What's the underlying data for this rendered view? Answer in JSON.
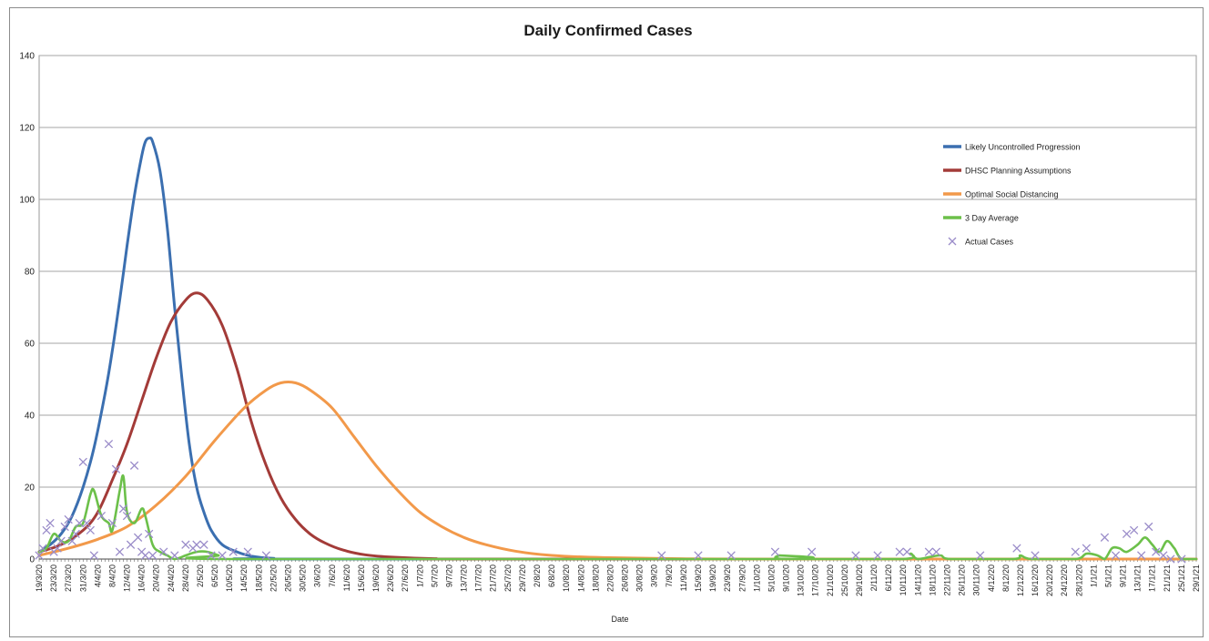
{
  "chart_data": {
    "type": "line",
    "title": "Daily Confirmed Cases",
    "xlabel": "Date",
    "ylabel": "",
    "ylim": [
      0,
      140
    ],
    "yticks": [
      0,
      20,
      40,
      60,
      80,
      100,
      120,
      140
    ],
    "grid": true,
    "legend_position": "top-right",
    "x_start_date": "2020-03-19",
    "x_end_date": "2021-01-29",
    "x_tick_labels": [
      "19/3/20",
      "23/3/20",
      "27/3/20",
      "31/3/20",
      "4/4/20",
      "8/4/20",
      "12/4/20",
      "16/4/20",
      "20/4/20",
      "24/4/20",
      "28/4/20",
      "2/5/20",
      "6/5/20",
      "10/5/20",
      "14/5/20",
      "18/5/20",
      "22/5/20",
      "26/5/20",
      "30/5/20",
      "3/6/20",
      "7/6/20",
      "11/6/20",
      "15/6/20",
      "19/6/20",
      "23/6/20",
      "27/6/20",
      "1/7/20",
      "5/7/20",
      "9/7/20",
      "13/7/20",
      "17/7/20",
      "21/7/20",
      "25/7/20",
      "29/7/20",
      "2/8/20",
      "6/8/20",
      "10/8/20",
      "14/8/20",
      "18/8/20",
      "22/8/20",
      "26/8/20",
      "30/8/20",
      "3/9/20",
      "7/9/20",
      "11/9/20",
      "15/9/20",
      "19/9/20",
      "23/9/20",
      "27/9/20",
      "1/10/20",
      "5/10/20",
      "9/10/20",
      "13/10/20",
      "17/10/20",
      "21/10/20",
      "25/10/20",
      "29/10/20",
      "2/11/20",
      "6/11/20",
      "10/11/20",
      "14/11/20",
      "18/11/20",
      "22/11/20",
      "26/11/20",
      "30/11/20",
      "4/12/20",
      "8/12/20",
      "12/12/20",
      "16/12/20",
      "20/12/20",
      "24/12/20",
      "28/12/20",
      "1/1/21",
      "5/1/21",
      "9/1/21",
      "13/1/21",
      "17/1/21",
      "21/1/21",
      "25/1/21",
      "29/1/21"
    ],
    "series": [
      {
        "name": "Likely Uncontrolled Progression",
        "color": "#3b6fb0",
        "style": "line",
        "points": [
          [
            "2020-03-19",
            2
          ],
          [
            "2020-03-22",
            4
          ],
          [
            "2020-03-25",
            7
          ],
          [
            "2020-03-28",
            12
          ],
          [
            "2020-03-31",
            20
          ],
          [
            "2020-04-03",
            31
          ],
          [
            "2020-04-06",
            46
          ],
          [
            "2020-04-08",
            58
          ],
          [
            "2020-04-10",
            72
          ],
          [
            "2020-04-12",
            87
          ],
          [
            "2020-04-14",
            101
          ],
          [
            "2020-04-16",
            112
          ],
          [
            "2020-04-17",
            116
          ],
          [
            "2020-04-18",
            117
          ],
          [
            "2020-04-19",
            116
          ],
          [
            "2020-04-21",
            108
          ],
          [
            "2020-04-23",
            92
          ],
          [
            "2020-04-25",
            70
          ],
          [
            "2020-04-27",
            50
          ],
          [
            "2020-04-29",
            32
          ],
          [
            "2020-05-01",
            20
          ],
          [
            "2020-05-03",
            13
          ],
          [
            "2020-05-05",
            8
          ],
          [
            "2020-05-08",
            4
          ],
          [
            "2020-05-12",
            2
          ],
          [
            "2020-05-16",
            0.8
          ],
          [
            "2020-05-22",
            0.2
          ],
          [
            "2020-06-01",
            0
          ],
          [
            "2021-01-29",
            0
          ]
        ]
      },
      {
        "name": "DHSC Planning Assumptions",
        "color": "#a33b38",
        "style": "line",
        "points": [
          [
            "2020-03-19",
            2
          ],
          [
            "2020-03-25",
            4
          ],
          [
            "2020-03-31",
            8
          ],
          [
            "2020-04-04",
            13
          ],
          [
            "2020-04-08",
            22
          ],
          [
            "2020-04-12",
            32
          ],
          [
            "2020-04-16",
            44
          ],
          [
            "2020-04-20",
            56
          ],
          [
            "2020-04-24",
            66
          ],
          [
            "2020-04-28",
            72
          ],
          [
            "2020-05-01",
            74
          ],
          [
            "2020-05-04",
            72
          ],
          [
            "2020-05-08",
            65
          ],
          [
            "2020-05-12",
            53
          ],
          [
            "2020-05-16",
            38
          ],
          [
            "2020-05-20",
            26
          ],
          [
            "2020-05-24",
            17
          ],
          [
            "2020-05-28",
            11
          ],
          [
            "2020-06-01",
            7
          ],
          [
            "2020-06-05",
            4.5
          ],
          [
            "2020-06-10",
            2.5
          ],
          [
            "2020-06-16",
            1.2
          ],
          [
            "2020-06-24",
            0.5
          ],
          [
            "2020-07-05",
            0.1
          ],
          [
            "2020-07-20",
            0
          ],
          [
            "2021-01-29",
            0
          ]
        ]
      },
      {
        "name": "Optimal Social Distancing",
        "color": "#f2994a",
        "style": "line",
        "points": [
          [
            "2020-03-19",
            1
          ],
          [
            "2020-03-27",
            3
          ],
          [
            "2020-04-04",
            5.5
          ],
          [
            "2020-04-12",
            9
          ],
          [
            "2020-04-20",
            15
          ],
          [
            "2020-04-28",
            23
          ],
          [
            "2020-05-06",
            33
          ],
          [
            "2020-05-14",
            42
          ],
          [
            "2020-05-20",
            47
          ],
          [
            "2020-05-24",
            49
          ],
          [
            "2020-05-28",
            49
          ],
          [
            "2020-06-01",
            47
          ],
          [
            "2020-06-07",
            42
          ],
          [
            "2020-06-13",
            34
          ],
          [
            "2020-06-19",
            26
          ],
          [
            "2020-06-25",
            19
          ],
          [
            "2020-07-01",
            13
          ],
          [
            "2020-07-07",
            9
          ],
          [
            "2020-07-13",
            6
          ],
          [
            "2020-07-19",
            4
          ],
          [
            "2020-07-27",
            2.2
          ],
          [
            "2020-08-06",
            1
          ],
          [
            "2020-08-20",
            0.4
          ],
          [
            "2020-09-10",
            0.1
          ],
          [
            "2020-10-01",
            0
          ],
          [
            "2021-01-14",
            0
          ],
          [
            "2021-01-29",
            0
          ]
        ]
      },
      {
        "name": "3 Day Average",
        "color": "#6cc04a",
        "style": "line",
        "points": [
          [
            "2020-03-19",
            2
          ],
          [
            "2020-03-21",
            3
          ],
          [
            "2020-03-23",
            7
          ],
          [
            "2020-03-25",
            5
          ],
          [
            "2020-03-27",
            5
          ],
          [
            "2020-03-29",
            9
          ],
          [
            "2020-03-31",
            10
          ],
          [
            "2020-04-02",
            18
          ],
          [
            "2020-04-03",
            19
          ],
          [
            "2020-04-05",
            12
          ],
          [
            "2020-04-07",
            10
          ],
          [
            "2020-04-08",
            8
          ],
          [
            "2020-04-10",
            19
          ],
          [
            "2020-04-11",
            23
          ],
          [
            "2020-04-12",
            13
          ],
          [
            "2020-04-14",
            10
          ],
          [
            "2020-04-16",
            14
          ],
          [
            "2020-04-17",
            12
          ],
          [
            "2020-04-19",
            4
          ],
          [
            "2020-04-21",
            2
          ],
          [
            "2020-04-23",
            1
          ],
          [
            "2020-04-25",
            0
          ],
          [
            "2020-04-28",
            1
          ],
          [
            "2020-05-01",
            2
          ],
          [
            "2020-05-04",
            2
          ],
          [
            "2020-05-07",
            1
          ],
          [
            "2020-05-10",
            0
          ],
          [
            "2020-10-05",
            0
          ],
          [
            "2020-10-07",
            1
          ],
          [
            "2020-10-09",
            0
          ],
          [
            "2020-11-10",
            0
          ],
          [
            "2020-11-12",
            1.5
          ],
          [
            "2020-11-14",
            0
          ],
          [
            "2020-11-20",
            1
          ],
          [
            "2020-11-23",
            0
          ],
          [
            "2020-12-10",
            0
          ],
          [
            "2020-12-12",
            1
          ],
          [
            "2020-12-15",
            0
          ],
          [
            "2020-12-27",
            0
          ],
          [
            "2020-12-30",
            1.5
          ],
          [
            "2021-01-02",
            1
          ],
          [
            "2021-01-04",
            0
          ],
          [
            "2021-01-06",
            3
          ],
          [
            "2021-01-08",
            3
          ],
          [
            "2021-01-10",
            2
          ],
          [
            "2021-01-13",
            4
          ],
          [
            "2021-01-15",
            6
          ],
          [
            "2021-01-17",
            4
          ],
          [
            "2021-01-19",
            2
          ],
          [
            "2021-01-21",
            5
          ],
          [
            "2021-01-23",
            3
          ],
          [
            "2021-01-25",
            0
          ],
          [
            "2021-01-29",
            0
          ]
        ]
      },
      {
        "name": "Actual Cases",
        "color": "#9a8cc9",
        "style": "marker",
        "points": [
          [
            "2020-03-19",
            1
          ],
          [
            "2020-03-20",
            3
          ],
          [
            "2020-03-21",
            8
          ],
          [
            "2020-03-22",
            10
          ],
          [
            "2020-03-23",
            2
          ],
          [
            "2020-03-24",
            3
          ],
          [
            "2020-03-25",
            5
          ],
          [
            "2020-03-26",
            9
          ],
          [
            "2020-03-27",
            11
          ],
          [
            "2020-03-28",
            5
          ],
          [
            "2020-03-29",
            7
          ],
          [
            "2020-03-30",
            10
          ],
          [
            "2020-03-31",
            27
          ],
          [
            "2020-04-01",
            10
          ],
          [
            "2020-04-02",
            8
          ],
          [
            "2020-04-03",
            1
          ],
          [
            "2020-04-05",
            12
          ],
          [
            "2020-04-07",
            32
          ],
          [
            "2020-04-08",
            10
          ],
          [
            "2020-04-09",
            25
          ],
          [
            "2020-04-10",
            2
          ],
          [
            "2020-04-11",
            14
          ],
          [
            "2020-04-12",
            12
          ],
          [
            "2020-04-13",
            4
          ],
          [
            "2020-04-14",
            26
          ],
          [
            "2020-04-15",
            6
          ],
          [
            "2020-04-16",
            2
          ],
          [
            "2020-04-17",
            1
          ],
          [
            "2020-04-18",
            7
          ],
          [
            "2020-04-19",
            1
          ],
          [
            "2020-04-22",
            2
          ],
          [
            "2020-04-25",
            1
          ],
          [
            "2020-04-28",
            4
          ],
          [
            "2020-04-30",
            3
          ],
          [
            "2020-05-01",
            4
          ],
          [
            "2020-05-03",
            4
          ],
          [
            "2020-05-05",
            1
          ],
          [
            "2020-05-08",
            1
          ],
          [
            "2020-05-11",
            2
          ],
          [
            "2020-05-15",
            2
          ],
          [
            "2020-05-20",
            1
          ],
          [
            "2020-09-05",
            1
          ],
          [
            "2020-09-15",
            1
          ],
          [
            "2020-09-24",
            1
          ],
          [
            "2020-10-06",
            2
          ],
          [
            "2020-10-16",
            2
          ],
          [
            "2020-10-28",
            1
          ],
          [
            "2020-11-03",
            1
          ],
          [
            "2020-11-09",
            2
          ],
          [
            "2020-11-11",
            2
          ],
          [
            "2020-11-17",
            2
          ],
          [
            "2020-11-19",
            2
          ],
          [
            "2020-12-01",
            1
          ],
          [
            "2020-12-11",
            3
          ],
          [
            "2020-12-16",
            1
          ],
          [
            "2020-12-27",
            2
          ],
          [
            "2020-12-30",
            3
          ],
          [
            "2021-01-04",
            6
          ],
          [
            "2021-01-07",
            1
          ],
          [
            "2021-01-10",
            7
          ],
          [
            "2021-01-12",
            8
          ],
          [
            "2021-01-14",
            1
          ],
          [
            "2021-01-16",
            9
          ],
          [
            "2021-01-18",
            2
          ],
          [
            "2021-01-20",
            1
          ],
          [
            "2021-01-22",
            0
          ],
          [
            "2021-01-25",
            0
          ]
        ]
      }
    ]
  }
}
